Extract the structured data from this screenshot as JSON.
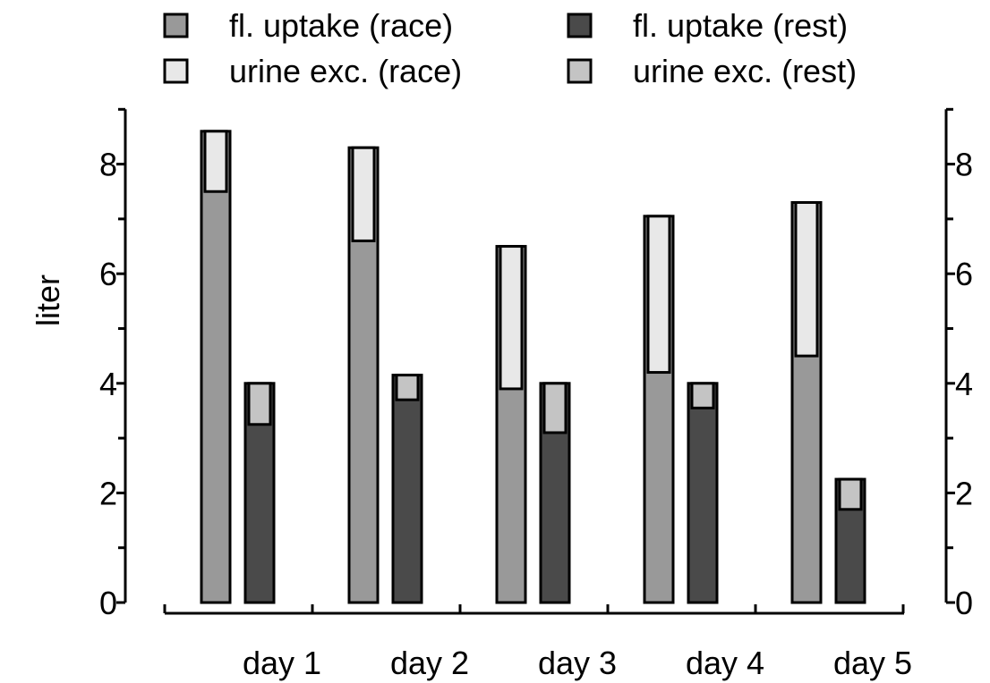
{
  "chart_data": {
    "type": "bar",
    "title": "",
    "xlabel": "",
    "ylabel": "liter",
    "ylim": [
      0,
      9
    ],
    "yticks": [
      "0",
      "2",
      "4",
      "6",
      "8"
    ],
    "categories": [
      "day 1",
      "day 2",
      "day 3",
      "day 4",
      "day 5"
    ],
    "series": [
      {
        "name": "fl. uptake (race)",
        "color": "#999999",
        "values": [
          8.6,
          8.3,
          6.5,
          7.05,
          7.3
        ]
      },
      {
        "name": "fl. uptake (rest)",
        "color": "#4a4a4a",
        "values": [
          4.0,
          4.15,
          4.0,
          4.0,
          2.25
        ]
      },
      {
        "name": "urine exc. (race)",
        "color": "#e8e8e8",
        "values": [
          1.1,
          1.7,
          2.6,
          2.85,
          2.8
        ]
      },
      {
        "name": "urine exc. (rest)",
        "color": "#c4c4c4",
        "values": [
          0.75,
          0.45,
          0.9,
          0.45,
          0.55
        ]
      }
    ],
    "legend": "top"
  }
}
